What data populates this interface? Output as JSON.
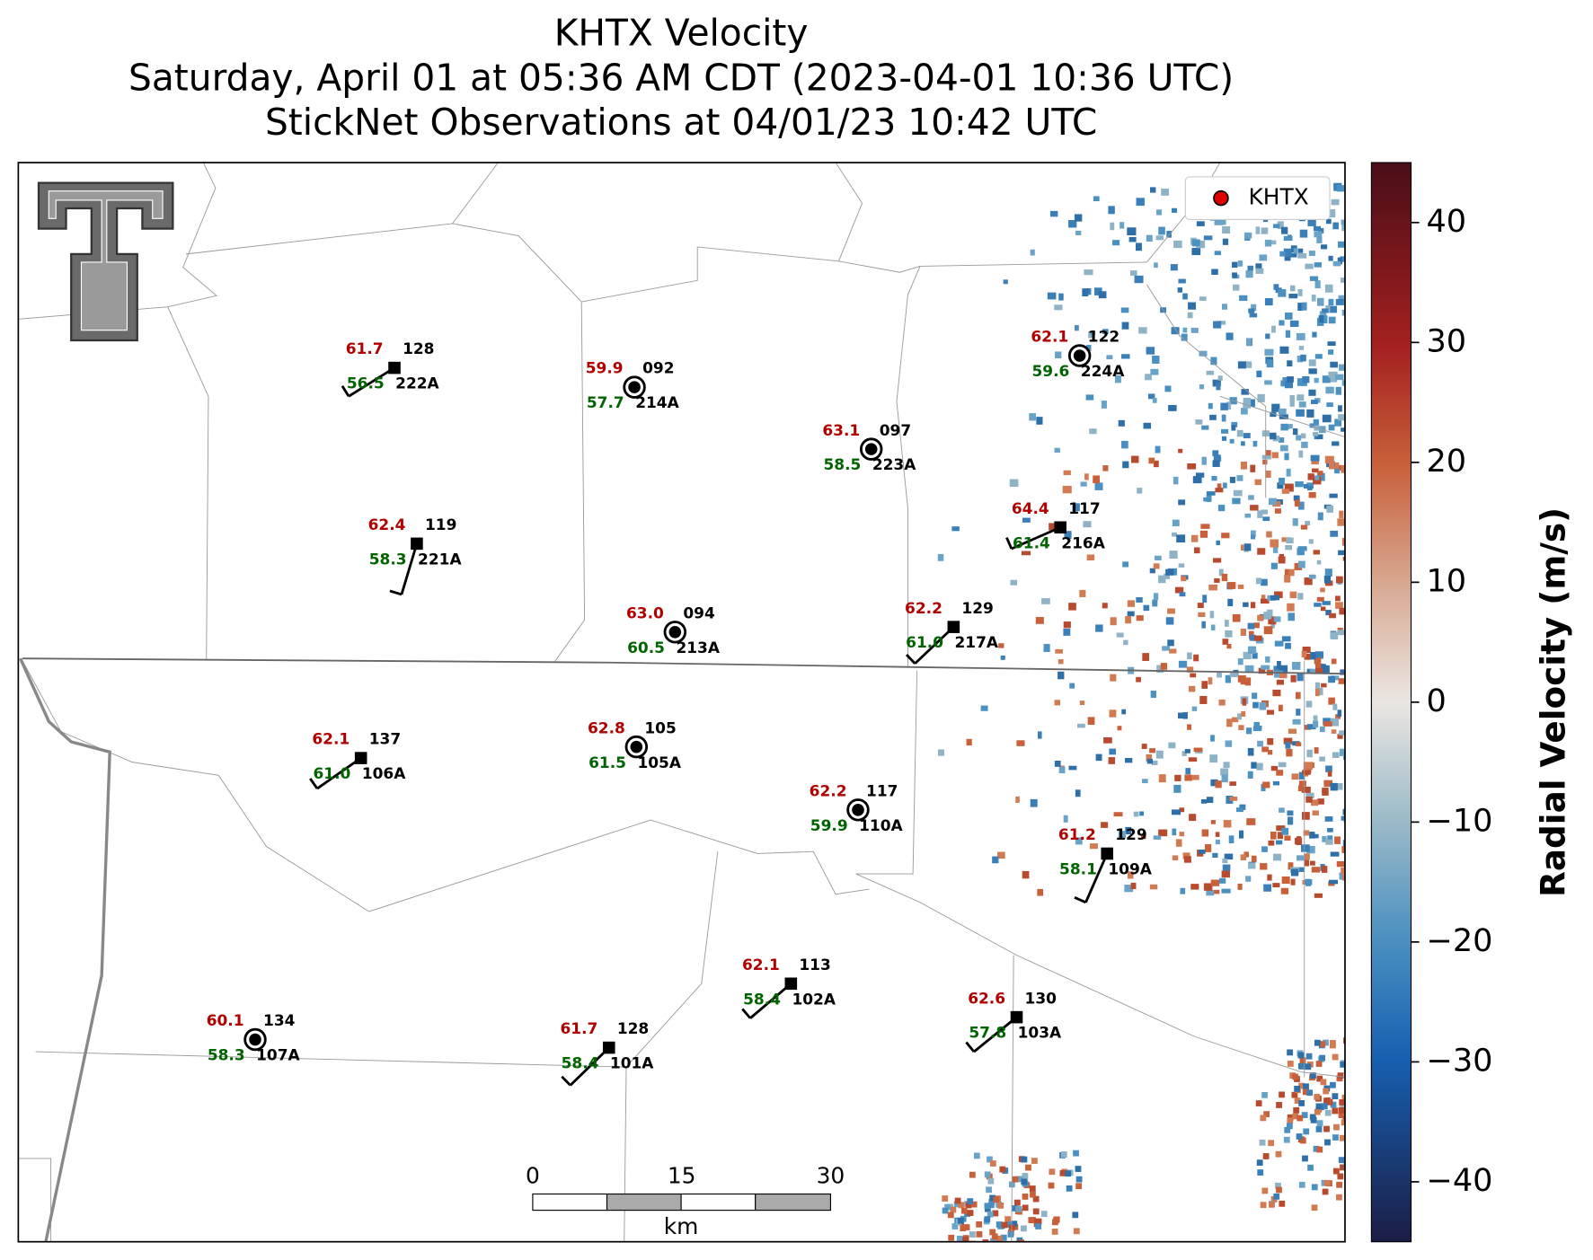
{
  "title": [
    "KHTX Velocity",
    "Saturday, April 01 at 05:36 AM CDT (2023-04-01 10:36 UTC)",
    "StickNet Observations at 04/01/23 10:42 UTC"
  ],
  "legend": {
    "label": "KHTX"
  },
  "stations": [
    {
      "id": "222A",
      "temperature": "61.7",
      "dewpoint": "56.5",
      "code": "128"
    },
    {
      "id": "214A",
      "temperature": "59.9",
      "dewpoint": "57.7",
      "code": "092"
    },
    {
      "id": "223A",
      "temperature": "63.1",
      "dewpoint": "58.5",
      "code": "097"
    },
    {
      "id": "224A",
      "temperature": "62.1",
      "dewpoint": "59.6",
      "code": "122"
    },
    {
      "id": "221A",
      "temperature": "62.4",
      "dewpoint": "58.3",
      "code": "119"
    },
    {
      "id": "216A",
      "temperature": "64.4",
      "dewpoint": "61.4",
      "code": "117"
    },
    {
      "id": "213A",
      "temperature": "63.0",
      "dewpoint": "60.5",
      "code": "094"
    },
    {
      "id": "217A",
      "temperature": "62.2",
      "dewpoint": "61.0",
      "code": "129"
    },
    {
      "id": "106A",
      "temperature": "62.1",
      "dewpoint": "61.0",
      "code": "137"
    },
    {
      "id": "105A",
      "temperature": "62.8",
      "dewpoint": "61.5",
      "code": "105"
    },
    {
      "id": "110A",
      "temperature": "62.2",
      "dewpoint": "59.9",
      "code": "117"
    },
    {
      "id": "109A",
      "temperature": "61.2",
      "dewpoint": "58.1",
      "code": "129"
    },
    {
      "id": "102A",
      "temperature": "62.1",
      "dewpoint": "58.4",
      "code": "113"
    },
    {
      "id": "103A",
      "temperature": "62.6",
      "dewpoint": "57.8",
      "code": "130"
    },
    {
      "id": "107A",
      "temperature": "60.1",
      "dewpoint": "58.3",
      "code": "134"
    },
    {
      "id": "101A",
      "temperature": "61.7",
      "dewpoint": "58.4",
      "code": "128"
    }
  ],
  "scale_bar": {
    "ticks": [
      0,
      15,
      30
    ],
    "unit": "km"
  },
  "colorbar": {
    "label": "Radial Velocity (m/s)",
    "ylim": [
      -45,
      45
    ],
    "ticks": [
      {
        "value": -40,
        "label": "−40"
      },
      {
        "value": -30,
        "label": "−30"
      },
      {
        "value": -20,
        "label": "−20"
      },
      {
        "value": -10,
        "label": "−10"
      },
      0,
      10,
      20,
      30,
      40
    ]
  }
}
